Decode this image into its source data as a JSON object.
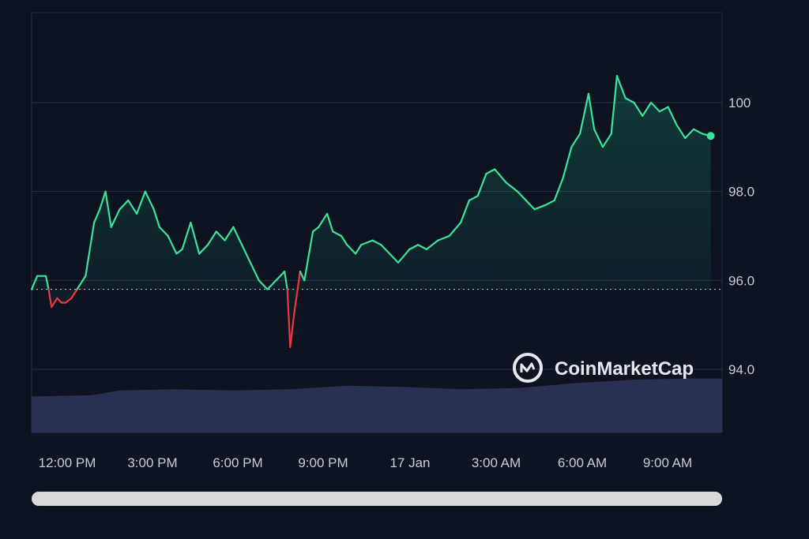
{
  "watermark": "CoinMarketCap",
  "colors": {
    "background": "#0e1322",
    "up_line": "#3ee29a",
    "down_line": "#ea3943",
    "grid": "#2b3140",
    "volume": "#2c3457",
    "scrollbar": "#d9d9d9",
    "axis_text": "#c9ccd6"
  },
  "chart_data": {
    "type": "line",
    "x_tick_labels": [
      "12:00 PM",
      "3:00 PM",
      "6:00 PM",
      "9:00 PM",
      "17 Jan",
      "3:00 AM",
      "6:00 AM",
      "9:00 AM"
    ],
    "y_tick_labels": [
      "100",
      "98.0",
      "96.0",
      "94.0"
    ],
    "y_ticks": [
      100,
      98,
      96,
      94
    ],
    "ylim": [
      92.6,
      102.0
    ],
    "baseline": 95.8,
    "x_range_hours": [
      10.9,
      35.2
    ],
    "grid": "horizontal",
    "series": [
      {
        "points": [
          [
            10.9,
            95.8
          ],
          [
            11.1,
            96.1
          ],
          [
            11.4,
            96.1
          ],
          [
            11.5,
            95.8
          ],
          [
            11.6,
            95.4
          ],
          [
            11.8,
            95.6
          ],
          [
            11.95,
            95.5
          ],
          [
            12.1,
            95.5
          ],
          [
            12.3,
            95.6
          ],
          [
            12.5,
            95.8
          ],
          [
            12.8,
            96.1
          ],
          [
            13.1,
            97.3
          ],
          [
            13.3,
            97.6
          ],
          [
            13.5,
            98.0
          ],
          [
            13.7,
            97.2
          ],
          [
            14.0,
            97.6
          ],
          [
            14.3,
            97.8
          ],
          [
            14.6,
            97.5
          ],
          [
            14.9,
            98.0
          ],
          [
            15.2,
            97.6
          ],
          [
            15.4,
            97.2
          ],
          [
            15.7,
            97.0
          ],
          [
            16.0,
            96.6
          ],
          [
            16.2,
            96.7
          ],
          [
            16.5,
            97.3
          ],
          [
            16.8,
            96.6
          ],
          [
            17.1,
            96.8
          ],
          [
            17.4,
            97.1
          ],
          [
            17.7,
            96.9
          ],
          [
            18.0,
            97.2
          ],
          [
            18.3,
            96.8
          ],
          [
            18.6,
            96.4
          ],
          [
            18.9,
            96.0
          ],
          [
            19.2,
            95.8
          ],
          [
            19.5,
            96.0
          ],
          [
            19.8,
            96.2
          ],
          [
            19.9,
            95.8
          ],
          [
            20.0,
            94.5
          ],
          [
            20.15,
            95.3
          ],
          [
            20.35,
            96.2
          ],
          [
            20.5,
            96.0
          ],
          [
            20.8,
            97.1
          ],
          [
            21.0,
            97.2
          ],
          [
            21.3,
            97.5
          ],
          [
            21.5,
            97.1
          ],
          [
            21.8,
            97.0
          ],
          [
            22.0,
            96.8
          ],
          [
            22.3,
            96.6
          ],
          [
            22.5,
            96.8
          ],
          [
            22.9,
            96.9
          ],
          [
            23.2,
            96.8
          ],
          [
            23.5,
            96.6
          ],
          [
            23.8,
            96.4
          ],
          [
            24.2,
            96.7
          ],
          [
            24.5,
            96.8
          ],
          [
            24.8,
            96.7
          ],
          [
            25.2,
            96.9
          ],
          [
            25.6,
            97.0
          ],
          [
            26.0,
            97.3
          ],
          [
            26.3,
            97.8
          ],
          [
            26.6,
            97.9
          ],
          [
            26.9,
            98.4
          ],
          [
            27.2,
            98.5
          ],
          [
            27.6,
            98.2
          ],
          [
            28.0,
            98.0
          ],
          [
            28.3,
            97.8
          ],
          [
            28.6,
            97.6
          ],
          [
            29.0,
            97.7
          ],
          [
            29.3,
            97.8
          ],
          [
            29.6,
            98.3
          ],
          [
            29.9,
            99.0
          ],
          [
            30.2,
            99.3
          ],
          [
            30.5,
            100.2
          ],
          [
            30.7,
            99.4
          ],
          [
            31.0,
            99.0
          ],
          [
            31.3,
            99.3
          ],
          [
            31.5,
            100.6
          ],
          [
            31.8,
            100.1
          ],
          [
            32.1,
            100.0
          ],
          [
            32.4,
            99.7
          ],
          [
            32.7,
            100.0
          ],
          [
            33.0,
            99.8
          ],
          [
            33.3,
            99.9
          ],
          [
            33.6,
            99.5
          ],
          [
            33.9,
            99.2
          ],
          [
            34.2,
            99.4
          ],
          [
            34.5,
            99.3
          ],
          [
            34.8,
            99.25
          ]
        ]
      }
    ],
    "volume": [
      [
        10.9,
        0.6
      ],
      [
        13.0,
        0.62
      ],
      [
        14.0,
        0.7
      ],
      [
        16.0,
        0.72
      ],
      [
        18.0,
        0.7
      ],
      [
        20.0,
        0.72
      ],
      [
        22.0,
        0.78
      ],
      [
        24.0,
        0.76
      ],
      [
        26.0,
        0.72
      ],
      [
        28.0,
        0.74
      ],
      [
        30.0,
        0.82
      ],
      [
        32.0,
        0.88
      ],
      [
        34.0,
        0.9
      ],
      [
        35.2,
        0.9
      ]
    ]
  }
}
